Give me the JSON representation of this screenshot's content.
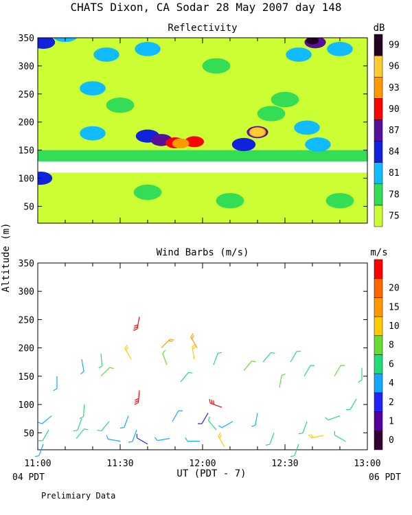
{
  "header": {
    "title": "CHATS Dixon, CA  Sodar  28 May 2007  day 148",
    "y_axis_label": "Altitude (m)",
    "x_axis_label": "UT  (PDT - 7)",
    "left_footer": "04 PDT",
    "right_footer": "06 PDT",
    "note": "Prelimiary Data"
  },
  "panels": {
    "reflectivity_title": "Reflectivity",
    "reflectivity_unit": "dB",
    "wind_title": "Wind Barbs (m/s)",
    "wind_unit": "m/s"
  },
  "colors": {
    "ref_levels": [
      "#ccff33",
      "#33dd55",
      "#11bbff",
      "#1122dd",
      "#551199",
      "#ff0000",
      "#ff9900",
      "#ffcc33",
      "#220022"
    ],
    "wind_levels": [
      "#330033",
      "#550099",
      "#2222ff",
      "#11aaff",
      "#22dd77",
      "#66dd33",
      "#ffcc00",
      "#ff9900",
      "#ff6600",
      "#ff0000"
    ]
  },
  "chart_data": [
    {
      "type": "heatmap",
      "title": "Reflectivity",
      "colorbar_label": "dB",
      "colorbar_ticks": [
        "75",
        "78",
        "81",
        "84",
        "87",
        "90",
        "93",
        "96",
        "99"
      ],
      "x_ticks": [
        "11:00",
        "11:30",
        "12:00",
        "12:30",
        "13:00"
      ],
      "y_ticks": [
        "50",
        "100",
        "150",
        "200",
        "250",
        "300",
        "350"
      ],
      "xlim": [
        0,
        120
      ],
      "ylim": [
        20,
        350
      ],
      "blobs": [
        {
          "x": 10,
          "y": 355,
          "level": 2
        },
        {
          "x": 25,
          "y": 320,
          "level": 2
        },
        {
          "x": 40,
          "y": 330,
          "level": 2
        },
        {
          "x": 65,
          "y": 300,
          "level": 1
        },
        {
          "x": 95,
          "y": 320,
          "level": 2
        },
        {
          "x": 110,
          "y": 330,
          "level": 2
        },
        {
          "x": 101,
          "y": 342,
          "level": 4
        },
        {
          "x": 100,
          "y": 345,
          "level": 8
        },
        {
          "x": 2,
          "y": 342,
          "level": 3
        },
        {
          "x": 20,
          "y": 260,
          "level": 2
        },
        {
          "x": 30,
          "y": 230,
          "level": 1
        },
        {
          "x": 85,
          "y": 215,
          "level": 1
        },
        {
          "x": 90,
          "y": 240,
          "level": 1
        },
        {
          "x": 98,
          "y": 190,
          "level": 2
        },
        {
          "x": 20,
          "y": 180,
          "level": 2
        },
        {
          "x": 40,
          "y": 175,
          "level": 3
        },
        {
          "x": 45,
          "y": 168,
          "level": 4
        },
        {
          "x": 50,
          "y": 163,
          "level": 5
        },
        {
          "x": 57,
          "y": 165,
          "level": 5
        },
        {
          "x": 52,
          "y": 162,
          "level": 6
        },
        {
          "x": 80,
          "y": 182,
          "level": 4
        },
        {
          "x": 80,
          "y": 182,
          "level": 6
        },
        {
          "x": 80,
          "y": 182,
          "level": 7
        },
        {
          "x": 75,
          "y": 160,
          "level": 3
        },
        {
          "x": 102,
          "y": 160,
          "level": 2
        },
        {
          "x": 1,
          "y": 100,
          "level": 3
        },
        {
          "x": 40,
          "y": 75,
          "level": 1
        },
        {
          "x": 70,
          "y": 60,
          "level": 1
        },
        {
          "x": 110,
          "y": 60,
          "level": 1
        }
      ]
    },
    {
      "type": "scatter",
      "title": "Wind Barbs (m/s)",
      "colorbar_label": "m/s",
      "colorbar_ticks": [
        "0",
        "1",
        "2",
        "4",
        "6",
        "8",
        "10",
        "15",
        "20"
      ],
      "x_ticks": [
        "11:00",
        "11:30",
        "12:00",
        "12:30",
        "13:00"
      ],
      "y_ticks": [
        "50",
        "100",
        "150",
        "200",
        "250",
        "300",
        "350"
      ],
      "xlim": [
        0,
        120
      ],
      "ylim": [
        20,
        350
      ],
      "barbs": [
        {
          "t": 2,
          "h": 30,
          "dir": 200,
          "spd": 3
        },
        {
          "t": 4,
          "h": 55,
          "dir": 210,
          "spd": 4
        },
        {
          "t": 5,
          "h": 80,
          "dir": 230,
          "spd": 3
        },
        {
          "t": 7,
          "h": 150,
          "dir": 180,
          "spd": 3
        },
        {
          "t": 14,
          "h": 40,
          "dir": 40,
          "spd": 5
        },
        {
          "t": 16,
          "h": 75,
          "dir": 200,
          "spd": 4
        },
        {
          "t": 16,
          "h": 180,
          "dir": 170,
          "spd": 3
        },
        {
          "t": 17,
          "h": 100,
          "dir": 185,
          "spd": 5
        },
        {
          "t": 23,
          "h": 150,
          "dir": 45,
          "spd": 6
        },
        {
          "t": 23,
          "h": 190,
          "dir": 175,
          "spd": 5
        },
        {
          "t": 26,
          "h": 70,
          "dir": 220,
          "spd": 5
        },
        {
          "t": 30,
          "h": 35,
          "dir": 280,
          "spd": 3
        },
        {
          "t": 33,
          "h": 80,
          "dir": 200,
          "spd": 3
        },
        {
          "t": 34,
          "h": 180,
          "dir": 330,
          "spd": 9
        },
        {
          "t": 36,
          "h": 55,
          "dir": 200,
          "spd": 3
        },
        {
          "t": 37,
          "h": 255,
          "dir": 190,
          "spd": 20
        },
        {
          "t": 37,
          "h": 125,
          "dir": 185,
          "spd": 20
        },
        {
          "t": 40,
          "h": 30,
          "dir": 300,
          "spd": 2
        },
        {
          "t": 45,
          "h": 200,
          "dir": 45,
          "spd": 10
        },
        {
          "t": 47,
          "h": 170,
          "dir": 340,
          "spd": 6
        },
        {
          "t": 48,
          "h": 40,
          "dir": 260,
          "spd": 3
        },
        {
          "t": 49,
          "h": 70,
          "dir": 30,
          "spd": 3
        },
        {
          "t": 52,
          "h": 140,
          "dir": 40,
          "spd": 5
        },
        {
          "t": 57,
          "h": 180,
          "dir": 350,
          "spd": 9
        },
        {
          "t": 58,
          "h": 200,
          "dir": 330,
          "spd": 10
        },
        {
          "t": 59,
          "h": 35,
          "dir": 270,
          "spd": 3
        },
        {
          "t": 62,
          "h": 85,
          "dir": 210,
          "spd": 2
        },
        {
          "t": 64,
          "h": 170,
          "dir": 20,
          "spd": 5
        },
        {
          "t": 65,
          "h": 55,
          "dir": 320,
          "spd": 4
        },
        {
          "t": 67,
          "h": 95,
          "dir": 290,
          "spd": 20
        },
        {
          "t": 68,
          "h": 25,
          "dir": 330,
          "spd": 9
        },
        {
          "t": 71,
          "h": 70,
          "dir": 240,
          "spd": 3
        },
        {
          "t": 75,
          "h": 160,
          "dir": 40,
          "spd": 6
        },
        {
          "t": 80,
          "h": 85,
          "dir": 190,
          "spd": 3
        },
        {
          "t": 82,
          "h": 175,
          "dir": 40,
          "spd": 5
        },
        {
          "t": 86,
          "h": 50,
          "dir": 200,
          "spd": 4
        },
        {
          "t": 88,
          "h": 130,
          "dir": 10,
          "spd": 7
        },
        {
          "t": 92,
          "h": 175,
          "dir": 30,
          "spd": 4
        },
        {
          "t": 95,
          "h": 30,
          "dir": 200,
          "spd": 4
        },
        {
          "t": 97,
          "h": 150,
          "dir": 30,
          "spd": 4
        },
        {
          "t": 98,
          "h": 70,
          "dir": 200,
          "spd": 4
        },
        {
          "t": 104,
          "h": 45,
          "dir": 260,
          "spd": 9
        },
        {
          "t": 108,
          "h": 150,
          "dir": 30,
          "spd": 6
        },
        {
          "t": 110,
          "h": 80,
          "dir": 250,
          "spd": 5
        },
        {
          "t": 112,
          "h": 35,
          "dir": 300,
          "spd": 4
        },
        {
          "t": 116,
          "h": 110,
          "dir": 210,
          "spd": 4
        },
        {
          "t": 118,
          "h": 165,
          "dir": 180,
          "spd": 5
        }
      ]
    }
  ]
}
